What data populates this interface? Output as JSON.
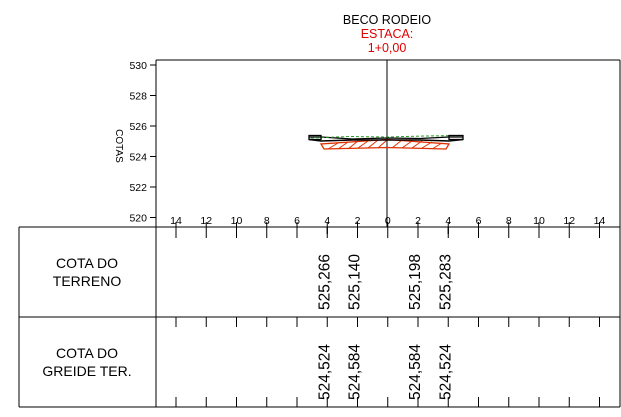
{
  "header": {
    "street": "BECO RODEIO",
    "station_label": "ESTACA:",
    "station_value": "1+0,00"
  },
  "axis": {
    "y_label": "COTAS",
    "y_ticks": [
      "530",
      "528",
      "526",
      "524",
      "522",
      "520"
    ],
    "x_ticks": [
      "14",
      "12",
      "10",
      "8",
      "6",
      "4",
      "2",
      "0",
      "2",
      "4",
      "6",
      "8",
      "10",
      "12",
      "14"
    ]
  },
  "table": {
    "row1_label_line1": "COTA DO",
    "row1_label_line2": "TERRENO",
    "row2_label_line1": "COTA DO",
    "row2_label_line2": "GREIDE TER.",
    "terrain_values": [
      "525,266",
      "525,140",
      "525,198",
      "525,283"
    ],
    "grade_values": [
      "524,524",
      "524,584",
      "524,584",
      "524,524"
    ]
  },
  "colors": {
    "line": "#000000",
    "highlight": "#e00000",
    "fill_hatch": "#e03000",
    "green_dash": "#2a9a2a"
  }
}
